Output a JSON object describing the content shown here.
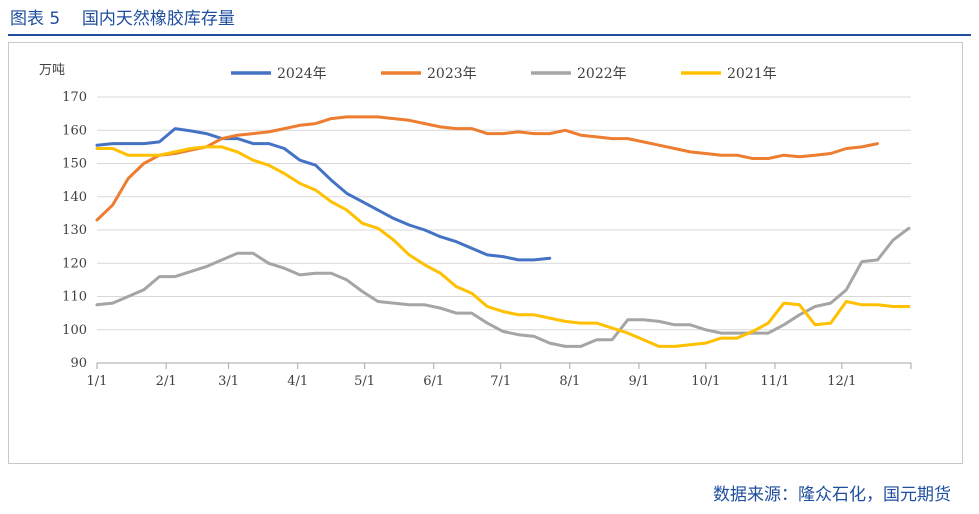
{
  "header": {
    "figure_label": "图表 5",
    "figure_title": "国内天然橡胶库存量"
  },
  "footer": {
    "source": "数据来源：隆众石化，国元期货"
  },
  "chart_data": {
    "type": "line",
    "title": "国内天然橡胶库存量",
    "ylabel": "万吨",
    "xlabel": "",
    "ylim": [
      90,
      170
    ],
    "yticks": [
      90,
      100,
      110,
      120,
      130,
      140,
      150,
      160,
      170
    ],
    "xlim": [
      0,
      365
    ],
    "xticks": [
      {
        "label": "1/1",
        "day": 0
      },
      {
        "label": "2/1",
        "day": 31
      },
      {
        "label": "3/1",
        "day": 59
      },
      {
        "label": "4/1",
        "day": 90
      },
      {
        "label": "5/1",
        "day": 120
      },
      {
        "label": "6/1",
        "day": 151
      },
      {
        "label": "7/1",
        "day": 181
      },
      {
        "label": "8/1",
        "day": 212
      },
      {
        "label": "9/1",
        "day": 243
      },
      {
        "label": "10/1",
        "day": 273
      },
      {
        "label": "11/1",
        "day": 304
      },
      {
        "label": "12/1",
        "day": 334
      }
    ],
    "grid": true,
    "legend_position": "top",
    "series": [
      {
        "name": "2024年",
        "color": "#4472c4",
        "points": [
          [
            0,
            155.5
          ],
          [
            7,
            156
          ],
          [
            14,
            156
          ],
          [
            21,
            156
          ],
          [
            28,
            156.5
          ],
          [
            35,
            160.5
          ],
          [
            42,
            159.8
          ],
          [
            49,
            159
          ],
          [
            56,
            157.5
          ],
          [
            63,
            157.5
          ],
          [
            70,
            156
          ],
          [
            77,
            156
          ],
          [
            84,
            154.5
          ],
          [
            91,
            151
          ],
          [
            98,
            149.5
          ],
          [
            105,
            145
          ],
          [
            112,
            141
          ],
          [
            119,
            138.5
          ],
          [
            126,
            136
          ],
          [
            133,
            133.5
          ],
          [
            140,
            131.5
          ],
          [
            147,
            130
          ],
          [
            154,
            128
          ],
          [
            161,
            126.5
          ],
          [
            168,
            124.5
          ],
          [
            175,
            122.5
          ],
          [
            182,
            122
          ],
          [
            189,
            121
          ],
          [
            196,
            121
          ],
          [
            203,
            121.5
          ]
        ]
      },
      {
        "name": "2023年",
        "color": "#ed7d31",
        "points": [
          [
            0,
            133
          ],
          [
            7,
            137.5
          ],
          [
            14,
            145.5
          ],
          [
            21,
            150
          ],
          [
            28,
            152.5
          ],
          [
            35,
            153
          ],
          [
            42,
            154
          ],
          [
            49,
            155
          ],
          [
            56,
            157.5
          ],
          [
            63,
            158.5
          ],
          [
            70,
            159
          ],
          [
            77,
            159.5
          ],
          [
            84,
            160.5
          ],
          [
            91,
            161.5
          ],
          [
            98,
            162
          ],
          [
            105,
            163.5
          ],
          [
            112,
            164
          ],
          [
            119,
            164
          ],
          [
            126,
            164
          ],
          [
            133,
            163.5
          ],
          [
            140,
            163
          ],
          [
            147,
            162
          ],
          [
            154,
            161
          ],
          [
            161,
            160.5
          ],
          [
            168,
            160.5
          ],
          [
            175,
            159
          ],
          [
            182,
            159
          ],
          [
            189,
            159.5
          ],
          [
            196,
            159
          ],
          [
            203,
            159
          ],
          [
            210,
            160
          ],
          [
            217,
            158.5
          ],
          [
            224,
            158
          ],
          [
            231,
            157.5
          ],
          [
            238,
            157.5
          ],
          [
            245,
            156.5
          ],
          [
            252,
            155.5
          ],
          [
            259,
            154.5
          ],
          [
            266,
            153.5
          ],
          [
            273,
            153
          ],
          [
            280,
            152.5
          ],
          [
            287,
            152.5
          ],
          [
            294,
            151.5
          ],
          [
            301,
            151.5
          ],
          [
            308,
            152.5
          ],
          [
            315,
            152
          ],
          [
            322,
            152.5
          ],
          [
            329,
            153
          ],
          [
            336,
            154.5
          ],
          [
            343,
            155
          ],
          [
            350,
            156
          ]
        ]
      },
      {
        "name": "2022年",
        "color": "#a5a5a5",
        "points": [
          [
            0,
            107.5
          ],
          [
            7,
            108
          ],
          [
            14,
            110
          ],
          [
            21,
            112
          ],
          [
            28,
            116
          ],
          [
            35,
            116
          ],
          [
            42,
            117.5
          ],
          [
            49,
            119
          ],
          [
            56,
            121
          ],
          [
            63,
            123
          ],
          [
            70,
            123
          ],
          [
            77,
            120
          ],
          [
            84,
            118.5
          ],
          [
            91,
            116.5
          ],
          [
            98,
            117
          ],
          [
            105,
            117
          ],
          [
            112,
            115
          ],
          [
            119,
            111.5
          ],
          [
            126,
            108.5
          ],
          [
            133,
            108
          ],
          [
            140,
            107.5
          ],
          [
            147,
            107.5
          ],
          [
            154,
            106.5
          ],
          [
            161,
            105
          ],
          [
            168,
            105
          ],
          [
            175,
            102
          ],
          [
            182,
            99.5
          ],
          [
            189,
            98.5
          ],
          [
            196,
            98
          ],
          [
            203,
            96
          ],
          [
            210,
            95
          ],
          [
            217,
            95
          ],
          [
            224,
            97
          ],
          [
            231,
            97
          ],
          [
            238,
            103
          ],
          [
            245,
            103
          ],
          [
            252,
            102.5
          ],
          [
            259,
            101.5
          ],
          [
            266,
            101.5
          ],
          [
            273,
            100
          ],
          [
            280,
            99
          ],
          [
            287,
            99
          ],
          [
            294,
            99
          ],
          [
            301,
            99
          ],
          [
            308,
            101.5
          ],
          [
            315,
            104.5
          ],
          [
            322,
            107
          ],
          [
            329,
            108
          ],
          [
            336,
            112
          ],
          [
            343,
            120.5
          ],
          [
            350,
            121
          ],
          [
            357,
            127
          ],
          [
            364,
            130.5
          ]
        ]
      },
      {
        "name": "2021年",
        "color": "#ffc000",
        "points": [
          [
            0,
            154.5
          ],
          [
            7,
            154.5
          ],
          [
            14,
            152.5
          ],
          [
            21,
            152.5
          ],
          [
            28,
            152.5
          ],
          [
            35,
            153.5
          ],
          [
            42,
            154.5
          ],
          [
            49,
            155
          ],
          [
            56,
            155
          ],
          [
            63,
            153.5
          ],
          [
            70,
            151
          ],
          [
            77,
            149.5
          ],
          [
            84,
            147
          ],
          [
            91,
            144
          ],
          [
            98,
            142
          ],
          [
            105,
            138.5
          ],
          [
            112,
            136
          ],
          [
            119,
            132
          ],
          [
            126,
            130.5
          ],
          [
            133,
            127
          ],
          [
            140,
            122.5
          ],
          [
            147,
            119.5
          ],
          [
            154,
            117
          ],
          [
            161,
            113
          ],
          [
            168,
            111
          ],
          [
            175,
            107
          ],
          [
            182,
            105.5
          ],
          [
            189,
            104.5
          ],
          [
            196,
            104.5
          ],
          [
            203,
            103.5
          ],
          [
            210,
            102.5
          ],
          [
            217,
            102
          ],
          [
            224,
            102
          ],
          [
            231,
            100.5
          ],
          [
            238,
            99
          ],
          [
            245,
            97
          ],
          [
            252,
            95
          ],
          [
            259,
            95
          ],
          [
            266,
            95.5
          ],
          [
            273,
            96
          ],
          [
            280,
            97.5
          ],
          [
            287,
            97.5
          ],
          [
            294,
            99.5
          ],
          [
            301,
            102
          ],
          [
            308,
            108
          ],
          [
            315,
            107.5
          ],
          [
            322,
            101.5
          ],
          [
            329,
            102
          ],
          [
            336,
            108.5
          ],
          [
            343,
            107.5
          ],
          [
            350,
            107.5
          ],
          [
            357,
            107
          ],
          [
            364,
            107
          ]
        ]
      }
    ]
  }
}
